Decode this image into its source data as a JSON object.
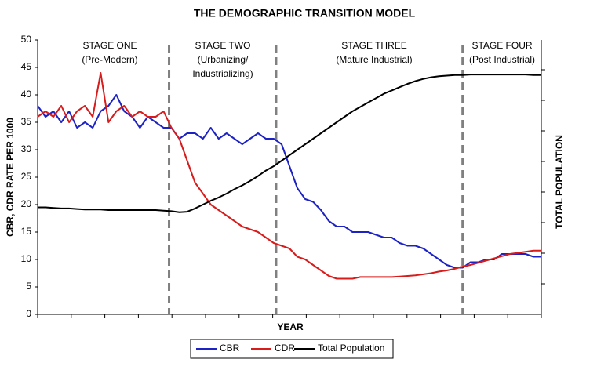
{
  "chart_data": {
    "type": "line",
    "title": "THE DEMOGRAPHIC TRANSITION MODEL",
    "x_label": "YEAR",
    "y_label": "CBR, CDR RATE PER 1000",
    "y2_label": "TOTAL POPULATION",
    "stages": [
      {
        "name": "STAGE ONE",
        "lines": [
          "(Pre-Modern)"
        ]
      },
      {
        "name": "STAGE TWO",
        "lines": [
          "(Urbanizing/",
          "Industrializing)"
        ]
      },
      {
        "name": "STAGE THREE",
        "lines": [
          "(Mature Industrial)"
        ]
      },
      {
        "name": "STAGE FOUR",
        "lines": [
          "(Post Industrial)"
        ]
      }
    ],
    "categories": [
      null,
      null,
      null,
      null,
      null,
      null,
      null,
      null,
      null,
      null,
      null,
      null,
      null,
      null,
      null,
      null,
      null,
      null,
      null,
      null,
      null,
      null,
      null,
      null,
      null,
      null,
      null,
      null,
      null,
      null,
      null,
      null,
      null,
      null,
      null,
      null,
      null,
      null,
      null,
      null,
      null,
      null,
      null,
      null,
      null,
      null,
      null,
      null,
      null,
      null,
      null,
      null,
      null,
      null,
      null,
      null,
      null,
      null,
      null,
      null,
      null,
      null,
      null,
      null,
      null
    ],
    "ylim": [
      0,
      50
    ],
    "yticks": [
      0,
      5,
      10,
      15,
      20,
      25,
      30,
      35,
      40,
      45,
      50
    ],
    "grid": false,
    "legend": "bottom",
    "series": [
      {
        "name": "CBR",
        "color": "#1c22c4",
        "values": [
          38,
          36,
          37,
          35,
          37,
          34,
          35,
          34,
          37,
          38,
          40,
          37,
          36,
          34,
          36,
          35,
          34,
          34,
          32,
          33,
          33,
          32,
          34,
          32,
          33,
          32,
          31,
          32,
          33,
          32,
          32,
          31,
          27,
          23,
          21,
          20.5,
          19,
          17,
          16,
          16,
          15,
          15,
          15,
          14.5,
          14,
          14,
          13,
          12.5,
          12.5,
          12,
          11,
          10,
          9,
          8.5,
          8.5,
          9.5,
          9.5,
          10,
          10,
          11,
          11,
          11,
          11,
          10.5,
          10.5
        ]
      },
      {
        "name": "CDR",
        "color": "#d81c1c",
        "values": [
          36,
          37,
          36,
          38,
          35,
          37,
          38,
          36,
          44,
          35,
          37,
          38,
          36,
          37,
          36,
          36,
          37,
          34,
          32,
          28,
          24,
          22,
          20,
          19,
          18,
          17,
          16,
          15.5,
          15,
          14,
          13,
          12.5,
          12,
          10.5,
          10,
          9,
          8,
          7,
          6.5,
          6.5,
          6.5,
          6.8,
          6.8,
          6.8,
          6.8,
          6.8,
          6.9,
          7,
          7.1,
          7.3,
          7.5,
          7.8,
          8,
          8.3,
          8.7,
          9,
          9.4,
          9.8,
          10.2,
          10.6,
          11,
          11.2,
          11.4,
          11.6,
          11.6
        ]
      },
      {
        "name": "Total Population",
        "color": "#000000",
        "values": [
          19.5,
          19.5,
          19.4,
          19.3,
          19.3,
          19.2,
          19.1,
          19.1,
          19.1,
          19,
          19,
          19,
          19,
          19,
          19,
          19,
          18.9,
          18.8,
          18.6,
          18.7,
          19.3,
          20,
          20.7,
          21.3,
          22,
          22.8,
          23.5,
          24.3,
          25.2,
          26.2,
          27,
          28,
          29,
          30,
          31,
          32,
          33,
          34,
          35,
          36,
          37,
          37.8,
          38.6,
          39.4,
          40.2,
          40.8,
          41.4,
          42,
          42.5,
          42.9,
          43.2,
          43.4,
          43.5,
          43.6,
          43.6,
          43.7,
          43.7,
          43.7,
          43.7,
          43.7,
          43.7,
          43.7,
          43.7,
          43.6,
          43.6
        ]
      }
    ]
  }
}
